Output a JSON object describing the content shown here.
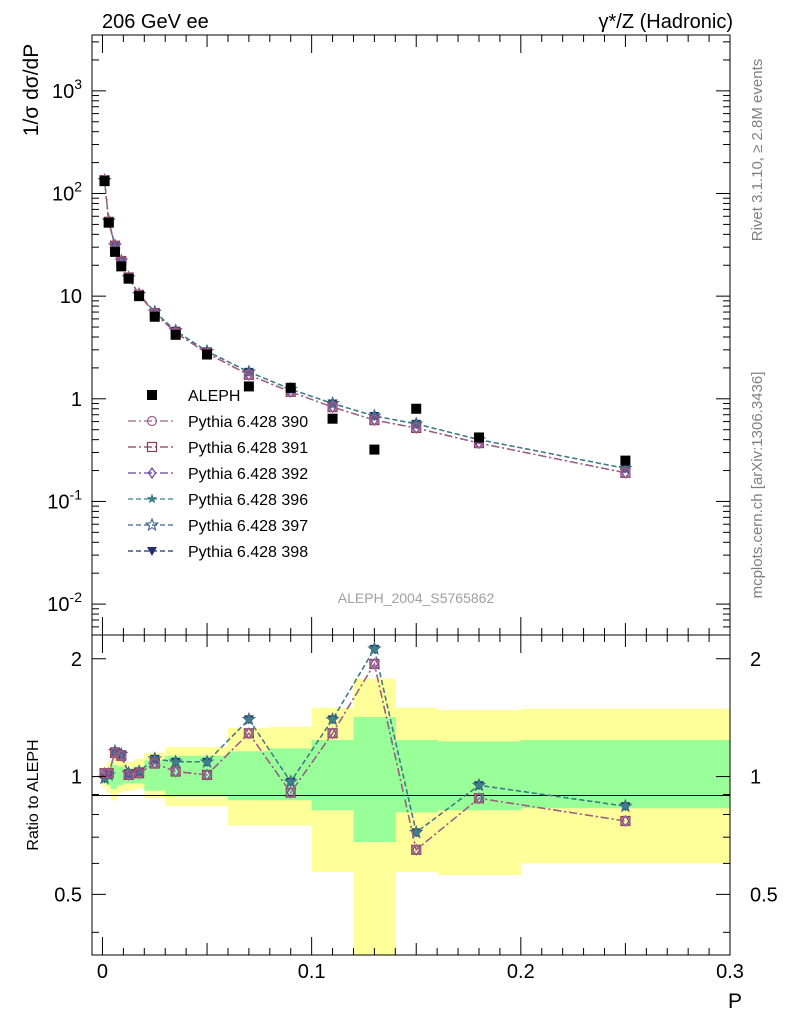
{
  "header": {
    "left": "206 GeV ee",
    "right": "γ*/Z (Hadronic)"
  },
  "side": {
    "rivet": "Rivet 3.1.10, ≥ 2.8M events",
    "mcplots": "mcplots.cern.ch [arXiv:1306.3436]"
  },
  "analysis_label": "ALEPH_2004_S5765862",
  "chart_data": [
    {
      "type": "scatter",
      "panel": "main",
      "ylabel": "1/σ dσ/dP",
      "xlabel": "",
      "yscale": "log",
      "xlim": [
        -0.005,
        0.3
      ],
      "ylim": [
        0.005,
        3500
      ],
      "y_tick_labels": [
        "10^-2",
        "10^-1",
        "1",
        "10",
        "10^2",
        "10^3"
      ],
      "legend_placement": "left-center",
      "colors": {
        "data": "#000000",
        "p390": "#a0608a",
        "p391": "#8a3b55",
        "p392": "#6a3fa0",
        "p396": "#3f7f86",
        "p397": "#3a5f8a",
        "p398": "#1f2f6a"
      },
      "x": [
        0.001,
        0.003,
        0.006,
        0.009,
        0.0125,
        0.0175,
        0.025,
        0.035,
        0.05,
        0.07,
        0.09,
        0.11,
        0.13,
        0.15,
        0.18,
        0.25
      ],
      "series": [
        {
          "name": "ALEPH",
          "color_key": "data",
          "marker": "filled-square",
          "line": "none",
          "values": [
            132,
            52,
            27,
            19.5,
            14.8,
            10.0,
            6.3,
            4.2,
            2.7,
            1.32,
            1.28,
            0.64,
            0.32,
            0.8,
            0.42,
            0.25
          ]
        },
        {
          "name": "Pythia 6.428 390",
          "color_key": "p390",
          "marker": "open-circle",
          "line": "dash-dot",
          "values": [
            135,
            53,
            31,
            22,
            15.2,
            10.3,
            6.8,
            4.4,
            2.78,
            1.71,
            1.17,
            0.83,
            0.62,
            0.52,
            0.37,
            0.19
          ]
        },
        {
          "name": "Pythia 6.428 391",
          "color_key": "p391",
          "marker": "open-square",
          "line": "dash-dot",
          "values": [
            135,
            53,
            31,
            22,
            15.2,
            10.3,
            6.8,
            4.4,
            2.78,
            1.71,
            1.17,
            0.83,
            0.62,
            0.52,
            0.37,
            0.19
          ]
        },
        {
          "name": "Pythia 6.428 392",
          "color_key": "p392",
          "marker": "open-diamond",
          "line": "dash-dot",
          "values": [
            135,
            53,
            31,
            22,
            15.2,
            10.3,
            6.8,
            4.4,
            2.78,
            1.71,
            1.17,
            0.83,
            0.62,
            0.52,
            0.37,
            0.19
          ]
        },
        {
          "name": "Pythia 6.428 396",
          "color_key": "p396",
          "marker": "filled-star",
          "line": "dashed",
          "values": [
            134,
            54,
            31,
            22,
            15.1,
            10.4,
            7.0,
            4.6,
            2.9,
            1.83,
            1.24,
            0.9,
            0.68,
            0.57,
            0.4,
            0.21
          ]
        },
        {
          "name": "Pythia 6.428 397",
          "color_key": "p397",
          "marker": "open-star",
          "line": "dashed",
          "values": [
            134,
            54,
            31,
            22,
            15.1,
            10.4,
            7.0,
            4.6,
            2.9,
            1.83,
            1.24,
            0.9,
            0.68,
            0.57,
            0.4,
            0.21
          ]
        },
        {
          "name": "Pythia 6.428 398",
          "color_key": "p398",
          "marker": "filled-triangle-down",
          "line": "dashed",
          "values": [
            134,
            54,
            31,
            22,
            15.1,
            10.4,
            7.0,
            4.6,
            2.9,
            1.83,
            1.24,
            0.9,
            0.68,
            0.57,
            0.4,
            0.21
          ]
        }
      ]
    },
    {
      "type": "line",
      "panel": "ratio",
      "ylabel": "Ratio to ALEPH",
      "xlabel": "P",
      "xlim": [
        -0.005,
        0.3
      ],
      "ylim": [
        0.35,
        2.3
      ],
      "x_tick_labels": [
        "0",
        "0.1",
        "0.2",
        "0.3"
      ],
      "y_tick_labels": [
        "0.5",
        "1",
        "2"
      ],
      "band_colors": {
        "inner": "#99ff99",
        "outer": "#ffff99"
      },
      "bands": {
        "edges": [
          0,
          0.002,
          0.004,
          0.007,
          0.01,
          0.015,
          0.02,
          0.03,
          0.04,
          0.06,
          0.08,
          0.1,
          0.12,
          0.14,
          0.16,
          0.2,
          0.3
        ],
        "inner_low": [
          0.96,
          0.95,
          0.93,
          0.95,
          0.96,
          0.96,
          0.92,
          0.89,
          0.89,
          0.87,
          0.87,
          0.82,
          0.68,
          0.81,
          0.82,
          0.83
        ],
        "inner_high": [
          1.04,
          1.05,
          1.07,
          1.06,
          1.05,
          1.06,
          1.1,
          1.13,
          1.13,
          1.16,
          1.18,
          1.24,
          1.42,
          1.24,
          1.23,
          1.24
        ],
        "outer_low": [
          0.94,
          0.91,
          0.87,
          0.91,
          0.92,
          0.93,
          0.88,
          0.84,
          0.84,
          0.75,
          0.75,
          0.57,
          0.33,
          0.57,
          0.56,
          0.6
        ],
        "outer_high": [
          1.06,
          1.09,
          1.13,
          1.1,
          1.09,
          1.11,
          1.15,
          1.19,
          1.19,
          1.33,
          1.34,
          1.5,
          1.78,
          1.5,
          1.48,
          1.49
        ]
      },
      "x": [
        0.001,
        0.003,
        0.006,
        0.009,
        0.0125,
        0.0175,
        0.025,
        0.035,
        0.05,
        0.07,
        0.09,
        0.11,
        0.13,
        0.15,
        0.18,
        0.25
      ],
      "series": [
        {
          "name": "Pythia 6.428 390",
          "color_key": "p390",
          "marker": "open-circle",
          "line": "dash-dot",
          "values": [
            1.02,
            1.02,
            1.15,
            1.13,
            1.01,
            1.02,
            1.08,
            1.03,
            1.01,
            1.29,
            0.91,
            1.29,
            1.94,
            0.65,
            0.88,
            0.77
          ]
        },
        {
          "name": "Pythia 6.428 391",
          "color_key": "p391",
          "marker": "open-square",
          "line": "dash-dot",
          "values": [
            1.02,
            1.02,
            1.15,
            1.13,
            1.01,
            1.02,
            1.08,
            1.03,
            1.01,
            1.29,
            0.91,
            1.29,
            1.94,
            0.65,
            0.88,
            0.77
          ]
        },
        {
          "name": "Pythia 6.428 392",
          "color_key": "p392",
          "marker": "open-diamond",
          "line": "dash-dot",
          "values": [
            1.02,
            1.02,
            1.15,
            1.13,
            1.01,
            1.02,
            1.08,
            1.03,
            1.01,
            1.29,
            0.91,
            1.29,
            1.94,
            0.65,
            0.88,
            0.77
          ]
        },
        {
          "name": "Pythia 6.428 396",
          "color_key": "p396",
          "marker": "filled-star",
          "line": "dashed",
          "values": [
            0.99,
            1.01,
            1.16,
            1.14,
            1.02,
            1.03,
            1.11,
            1.09,
            1.09,
            1.4,
            0.97,
            1.4,
            2.12,
            0.72,
            0.95,
            0.84
          ]
        },
        {
          "name": "Pythia 6.428 397",
          "color_key": "p397",
          "marker": "open-star",
          "line": "dashed",
          "values": [
            0.99,
            1.01,
            1.16,
            1.14,
            1.02,
            1.03,
            1.11,
            1.09,
            1.09,
            1.4,
            0.97,
            1.4,
            2.12,
            0.72,
            0.95,
            0.84
          ]
        },
        {
          "name": "Pythia 6.428 398",
          "color_key": "p398",
          "marker": "filled-triangle-down",
          "line": "dashed",
          "values": [
            0.99,
            1.01,
            1.16,
            1.14,
            1.02,
            1.03,
            1.11,
            1.09,
            1.09,
            1.4,
            0.97,
            1.4,
            2.12,
            0.72,
            0.95,
            0.84
          ]
        }
      ]
    }
  ]
}
